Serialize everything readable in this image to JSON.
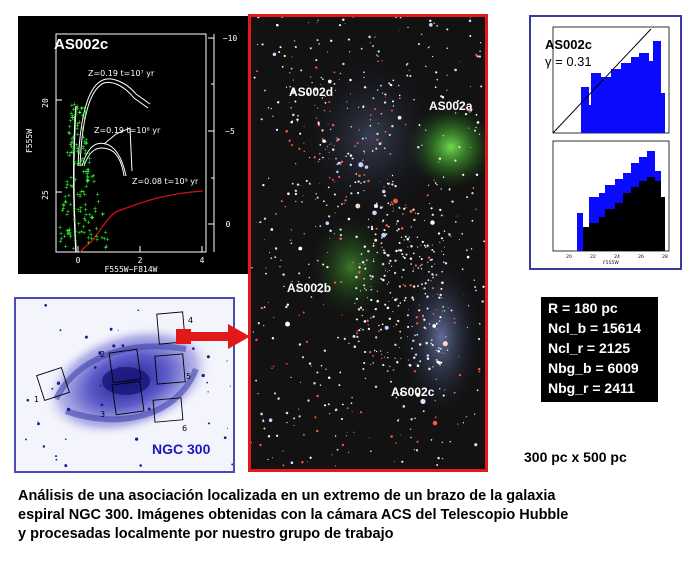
{
  "cmd_panel": {
    "title": "AS002c",
    "x_axis_label": "F555W−F814W",
    "y_axis_label": "F555W",
    "x_ticks": [
      "0",
      "2",
      "4"
    ],
    "y_ticks": [
      "20",
      "25"
    ],
    "right_ticks": [
      "−10",
      "−5",
      "0"
    ],
    "isochrones": [
      "Z=0.19  t=10⁷ yr",
      "Z=0.19  t=10⁸ yr",
      "Z=0.08  t=10⁹ yr"
    ]
  },
  "galaxy_panel": {
    "name": "NGC 300",
    "field_numbers": [
      "1",
      "2",
      "3",
      "4",
      "5",
      "6"
    ]
  },
  "field_panel": {
    "labels": [
      "AS002d",
      "AS002a",
      "AS002b",
      "AS002c"
    ]
  },
  "hist_panel": {
    "title": "AS002c",
    "gamma": "γ = 0.31",
    "x_label": "F555W",
    "x_ticks": [
      "20",
      "22",
      "24",
      "26",
      "28"
    ]
  },
  "stats": {
    "rows": [
      "R = 180 pc",
      "Ncl_b = 15614",
      "Ncl_r = 2125",
      "Nbg_b = 6009",
      "Nbg_r =  2411"
    ]
  },
  "dimensions": "300 pc x 500 pc",
  "caption": [
    "Análisis de una asociación localizada en un extremo de un brazo de la galaxia",
    "espiral NGC 300. Imágenes obtenidas con la cámara ACS del Telescopio Hubble",
    "y procesadas localmente por nuestro grupo de trabajo"
  ],
  "colors": {
    "red_frame": "#e11919",
    "blue_frame": "#4b4bb5",
    "hist_blue": "#0a0aff",
    "cmd_points": "#33ff33"
  }
}
